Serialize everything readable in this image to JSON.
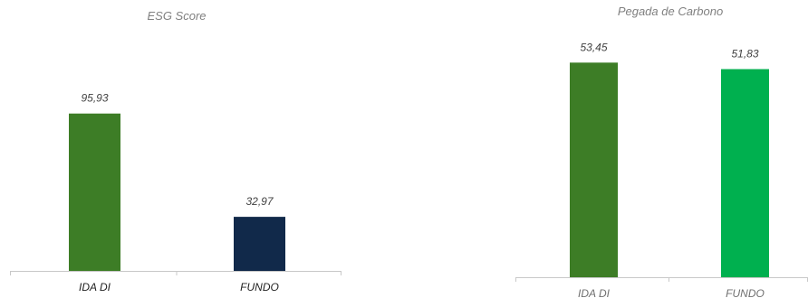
{
  "chart_data": [
    {
      "type": "bar",
      "title": "ESG Score",
      "categories": [
        "IDA DI",
        "FUNDO"
      ],
      "values": [
        95.93,
        32.97
      ],
      "value_labels": [
        "95,93",
        "32,97"
      ],
      "colors": [
        "#3d7d26",
        "#11294a"
      ],
      "ylim": [
        0,
        120
      ],
      "grid": false,
      "legend": "none"
    },
    {
      "type": "bar",
      "title": "Pegada de Carbono",
      "categories": [
        "IDA DI",
        "FUNDO"
      ],
      "values": [
        53.45,
        51.83
      ],
      "value_labels": [
        "53,45",
        "51,83"
      ],
      "colors": [
        "#3d7d26",
        "#00b04f"
      ],
      "ylim": [
        0,
        56
      ],
      "grid": false,
      "legend": "none"
    }
  ]
}
